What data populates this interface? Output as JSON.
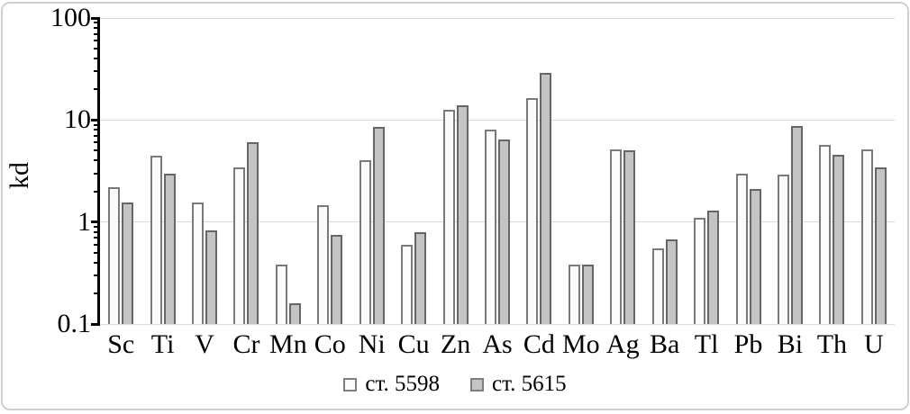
{
  "chart_data": {
    "type": "bar",
    "title": "",
    "xlabel": "",
    "ylabel": "kd",
    "y_scale": "log",
    "ylim": [
      0.1,
      100
    ],
    "y_ticks": [
      100,
      10,
      1,
      0.1
    ],
    "y_tick_labels": [
      "100",
      "10",
      "1",
      "0.1"
    ],
    "grid": "horizontal-major",
    "legend_position": "bottom",
    "categories": [
      "Sc",
      "Ti",
      "V",
      "Cr",
      "Mn",
      "Co",
      "Ni",
      "Cu",
      "Zn",
      "As",
      "Cd",
      "Mo",
      "Ag",
      "Ba",
      "Tl",
      "Pb",
      "Bi",
      "Th",
      "U"
    ],
    "series": [
      {
        "name": "ст. 5598",
        "fill": "#fbfbfb",
        "border": "#7a7a7a",
        "values": [
          2.2,
          4.5,
          1.55,
          3.4,
          0.38,
          1.45,
          4.0,
          0.6,
          12.5,
          8.0,
          16.5,
          0.38,
          5.2,
          0.55,
          1.1,
          3.0,
          2.9,
          5.7,
          5.2
        ]
      },
      {
        "name": "ст. 5615",
        "fill": "#c4c4c4",
        "border": "#666666",
        "values": [
          1.55,
          3.0,
          0.82,
          6.0,
          0.16,
          0.75,
          8.5,
          0.8,
          14.0,
          6.5,
          29.0,
          0.38,
          5.0,
          0.68,
          1.3,
          2.1,
          8.7,
          4.6,
          3.4
        ]
      }
    ],
    "colors": {
      "gridline": "#d9d9d9",
      "axis": "#000000",
      "text": "#000000",
      "frame_border": "#cdd1d4"
    }
  }
}
